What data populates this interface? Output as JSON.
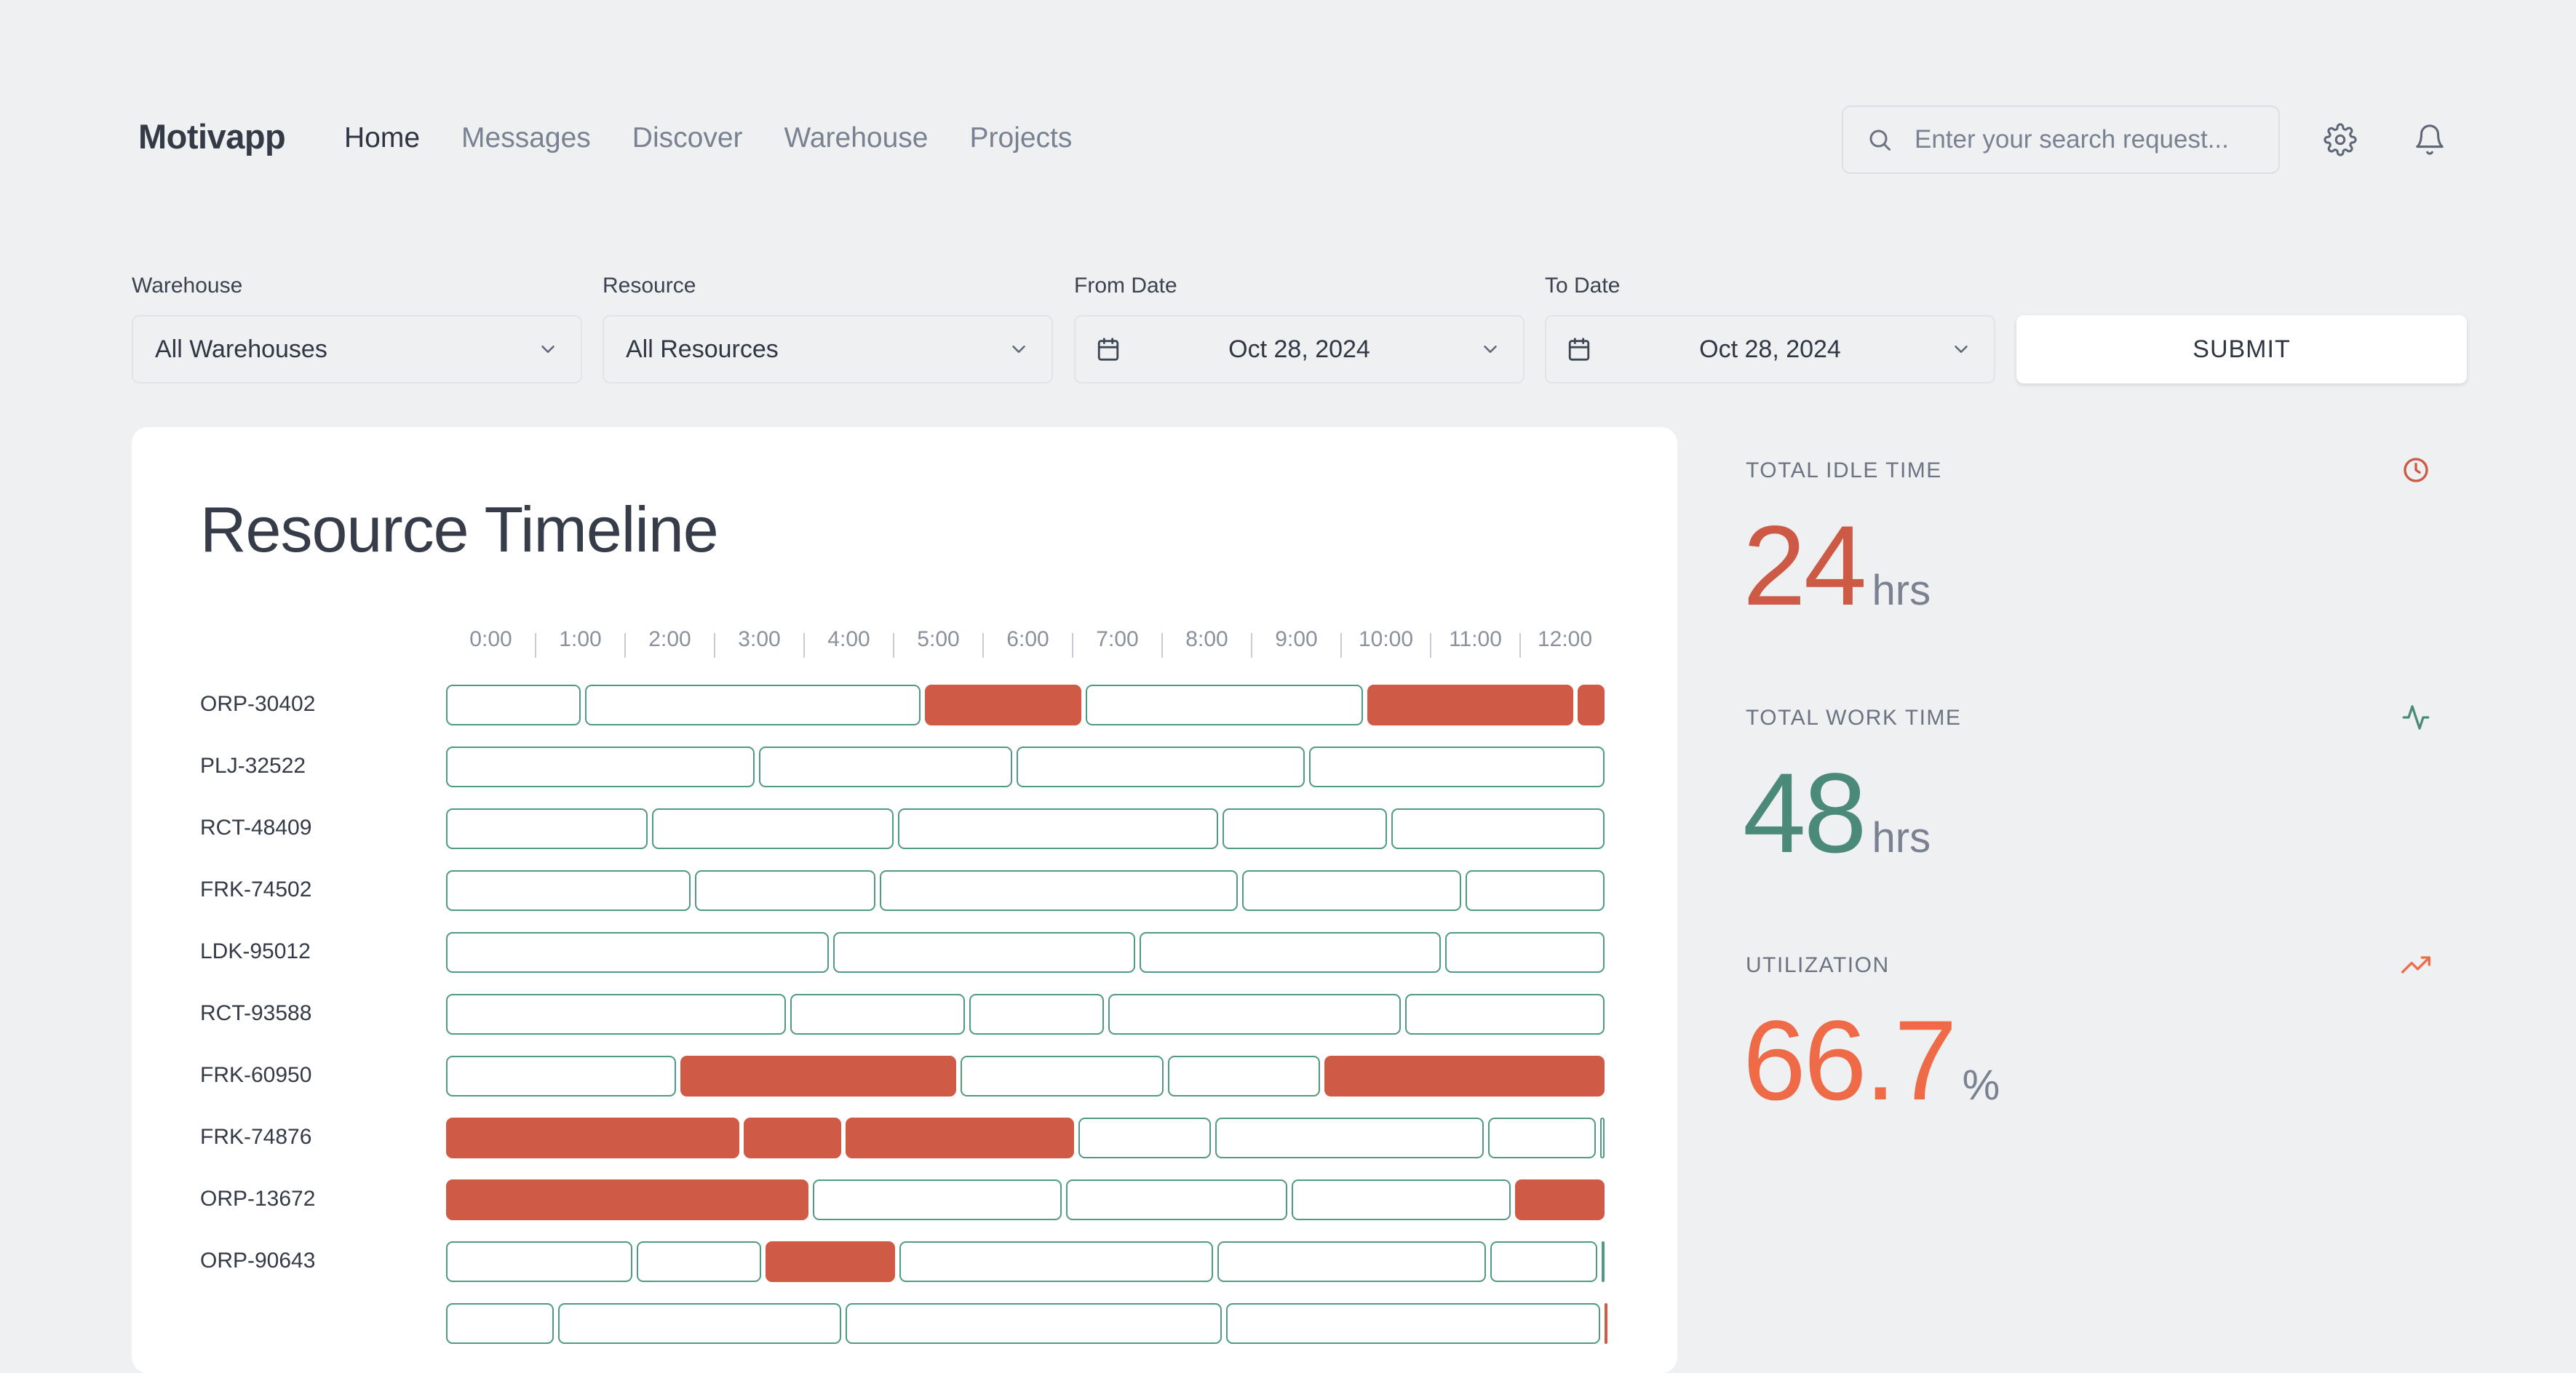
{
  "app": {
    "name": "Motivapp"
  },
  "nav": [
    "Home",
    "Messages",
    "Discover",
    "Warehouse",
    "Projects"
  ],
  "search": {
    "placeholder": "Enter your search request..."
  },
  "filters": {
    "warehouse": {
      "label": "Warehouse",
      "value": "All Warehouses"
    },
    "resource": {
      "label": "Resource",
      "value": "All Resources"
    },
    "from_date": {
      "label": "From Date",
      "value": "Oct 28, 2024"
    },
    "to_date": {
      "label": "To Date",
      "value": "Oct 28, 2024"
    },
    "submit_label": "SUBMIT"
  },
  "timeline": {
    "title": "Resource Timeline",
    "hours": [
      "0:00",
      "1:00",
      "2:00",
      "3:00",
      "4:00",
      "5:00",
      "6:00",
      "7:00",
      "8:00",
      "9:00",
      "10:00",
      "11:00",
      "12:00"
    ],
    "rows": [
      {
        "id": "ORP-30402",
        "segments": [
          {
            "start": 0,
            "end": 1.55,
            "state": "work"
          },
          {
            "start": 1.55,
            "end": 5.35,
            "state": "work"
          },
          {
            "start": 5.35,
            "end": 7.15,
            "state": "idle"
          },
          {
            "start": 7.15,
            "end": 10.3,
            "state": "work"
          },
          {
            "start": 10.3,
            "end": 12.65,
            "state": "idle"
          },
          {
            "start": 12.65,
            "end": 13,
            "state": "idle"
          }
        ]
      },
      {
        "id": "PLJ-32522",
        "segments": [
          {
            "start": 0,
            "end": 3.5,
            "state": "work"
          },
          {
            "start": 3.5,
            "end": 6.38,
            "state": "work"
          },
          {
            "start": 6.38,
            "end": 9.65,
            "state": "work"
          },
          {
            "start": 9.65,
            "end": 13,
            "state": "work"
          }
        ]
      },
      {
        "id": "RCT-48409",
        "segments": [
          {
            "start": 0,
            "end": 2.3,
            "state": "work"
          },
          {
            "start": 2.3,
            "end": 5.05,
            "state": "work"
          },
          {
            "start": 5.05,
            "end": 8.68,
            "state": "work"
          },
          {
            "start": 8.68,
            "end": 10.57,
            "state": "work"
          },
          {
            "start": 10.57,
            "end": 13,
            "state": "work"
          }
        ]
      },
      {
        "id": "FRK-74502",
        "segments": [
          {
            "start": 0,
            "end": 2.78,
            "state": "work"
          },
          {
            "start": 2.78,
            "end": 4.85,
            "state": "work"
          },
          {
            "start": 4.85,
            "end": 8.9,
            "state": "work"
          },
          {
            "start": 8.9,
            "end": 11.4,
            "state": "work"
          },
          {
            "start": 11.4,
            "end": 13,
            "state": "work"
          }
        ]
      },
      {
        "id": "LDK-95012",
        "segments": [
          {
            "start": 0,
            "end": 4.33,
            "state": "work"
          },
          {
            "start": 4.33,
            "end": 7.75,
            "state": "work"
          },
          {
            "start": 7.75,
            "end": 11.17,
            "state": "work"
          },
          {
            "start": 11.17,
            "end": 13,
            "state": "work"
          }
        ]
      },
      {
        "id": "RCT-93588",
        "segments": [
          {
            "start": 0,
            "end": 3.85,
            "state": "work"
          },
          {
            "start": 3.85,
            "end": 5.85,
            "state": "work"
          },
          {
            "start": 5.85,
            "end": 7.4,
            "state": "work"
          },
          {
            "start": 7.4,
            "end": 10.72,
            "state": "work"
          },
          {
            "start": 10.72,
            "end": 13,
            "state": "work"
          }
        ]
      },
      {
        "id": "FRK-60950",
        "segments": [
          {
            "start": 0,
            "end": 2.62,
            "state": "work"
          },
          {
            "start": 2.62,
            "end": 5.75,
            "state": "idle"
          },
          {
            "start": 5.75,
            "end": 8.07,
            "state": "work"
          },
          {
            "start": 8.07,
            "end": 9.82,
            "state": "work"
          },
          {
            "start": 9.82,
            "end": 13,
            "state": "idle"
          }
        ]
      },
      {
        "id": "FRK-74876",
        "segments": [
          {
            "start": 0,
            "end": 3.33,
            "state": "idle"
          },
          {
            "start": 3.33,
            "end": 4.47,
            "state": "idle"
          },
          {
            "start": 4.47,
            "end": 7.07,
            "state": "idle"
          },
          {
            "start": 7.07,
            "end": 8.6,
            "state": "work"
          },
          {
            "start": 8.6,
            "end": 11.65,
            "state": "work"
          },
          {
            "start": 11.65,
            "end": 12.9,
            "state": "work"
          },
          {
            "start": 12.9,
            "end": 13,
            "state": "work"
          }
        ]
      },
      {
        "id": "ORP-13672",
        "segments": [
          {
            "start": 0,
            "end": 4.1,
            "state": "idle"
          },
          {
            "start": 4.1,
            "end": 6.93,
            "state": "work"
          },
          {
            "start": 6.93,
            "end": 9.45,
            "state": "work"
          },
          {
            "start": 9.45,
            "end": 11.95,
            "state": "work"
          },
          {
            "start": 11.95,
            "end": 13,
            "state": "idle"
          }
        ]
      },
      {
        "id": "ORP-90643",
        "segments": [
          {
            "start": 0,
            "end": 2.13,
            "state": "work"
          },
          {
            "start": 2.13,
            "end": 3.57,
            "state": "work"
          },
          {
            "start": 3.57,
            "end": 5.07,
            "state": "idle"
          },
          {
            "start": 5.07,
            "end": 8.62,
            "state": "work"
          },
          {
            "start": 8.62,
            "end": 11.67,
            "state": "work"
          },
          {
            "start": 11.67,
            "end": 12.92,
            "state": "work"
          },
          {
            "start": 12.92,
            "end": 13,
            "state": "work"
          }
        ]
      },
      {
        "id": "",
        "segments": [
          {
            "start": 0,
            "end": 1.25,
            "state": "work"
          },
          {
            "start": 1.25,
            "end": 4.47,
            "state": "work"
          },
          {
            "start": 4.47,
            "end": 8.72,
            "state": "work"
          },
          {
            "start": 8.72,
            "end": 12.95,
            "state": "work"
          },
          {
            "start": 12.95,
            "end": 13,
            "state": "idle"
          }
        ]
      }
    ],
    "colors": {
      "work_border": "#4f9a81",
      "idle_fill": "#cf5a46"
    }
  },
  "stats": [
    {
      "label": "TOTAL IDLE TIME",
      "value": "24",
      "unit": "hrs",
      "color": "#cc5a45",
      "icon": "clock-icon"
    },
    {
      "label": "TOTAL WORK TIME",
      "value": "48",
      "unit": "hrs",
      "color": "#4b8a78",
      "icon": "activity-icon"
    },
    {
      "label": "UTILIZATION",
      "value": "66.7",
      "unit": "%",
      "color": "#ef6b48",
      "icon": "trending-up-icon"
    }
  ]
}
